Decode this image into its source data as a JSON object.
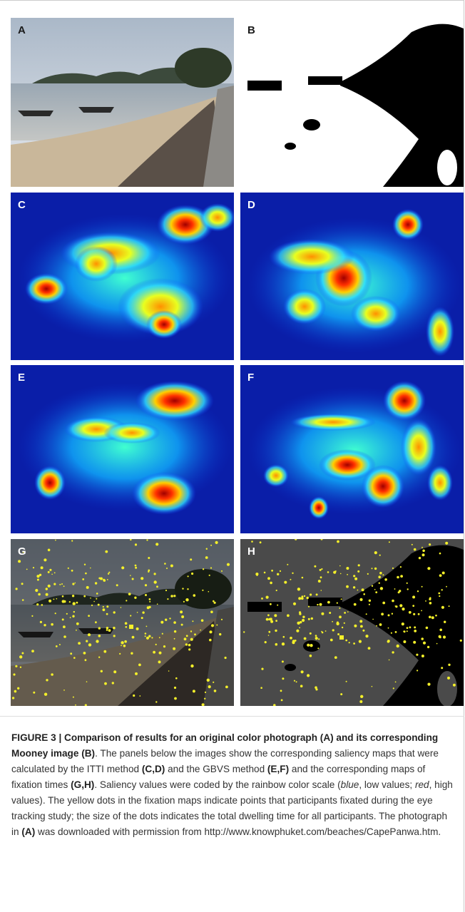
{
  "panels": [
    {
      "label": "A",
      "kind": "photo"
    },
    {
      "label": "B",
      "kind": "mooney"
    },
    {
      "label": "C",
      "kind": "heat-c"
    },
    {
      "label": "D",
      "kind": "heat-d"
    },
    {
      "label": "E",
      "kind": "heat-e"
    },
    {
      "label": "F",
      "kind": "heat-f"
    },
    {
      "label": "G",
      "kind": "fix-photo"
    },
    {
      "label": "H",
      "kind": "fix-mooney"
    }
  ],
  "caption": {
    "runs": [
      {
        "text": "FIGURE 3 | Comparison of results for an original color photograph (A) and its corresponding Mooney image (B)",
        "style": "b"
      },
      {
        "text": ". The panels below the images show the corresponding saliency maps that were calculated by the ITTI method ",
        "style": "n"
      },
      {
        "text": "(C,D)",
        "style": "b"
      },
      {
        "text": " and the GBVS method ",
        "style": "n"
      },
      {
        "text": "(E,F)",
        "style": "b"
      },
      {
        "text": " and the corresponding maps of fixation times ",
        "style": "n"
      },
      {
        "text": "(G,H)",
        "style": "b"
      },
      {
        "text": ". Saliency values were coded by the rainbow color scale (",
        "style": "n"
      },
      {
        "text": "blue",
        "style": "i"
      },
      {
        "text": ", low values; ",
        "style": "n"
      },
      {
        "text": "red",
        "style": "i"
      },
      {
        "text": ", high values). The yellow dots in the fixation maps indicate points that participants fixated during the eye tracking study; the size of the dots indicates the total dwelling time for all participants. The photograph in ",
        "style": "n"
      },
      {
        "text": "(A)",
        "style": "b"
      },
      {
        "text": " was downloaded with permission from http://www.knowphuket.com/beaches/CapePanwa.htm.",
        "style": "n"
      }
    ]
  }
}
